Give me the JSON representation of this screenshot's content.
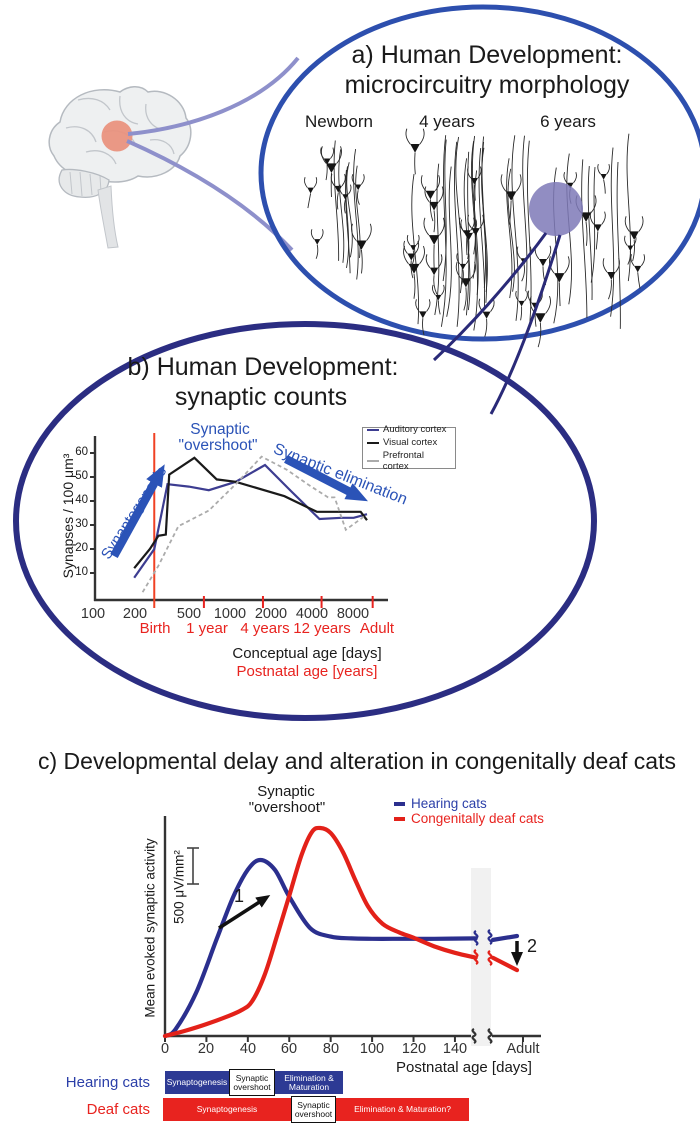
{
  "colors": {
    "ellipse_a_border": "#2d4fae",
    "ellipse_b_border": "#2b2d82",
    "zoom_connector_light": "#8e90cb",
    "zoom_connector_dark": "#2a2a78",
    "brain_highlight": "#e9927e",
    "morphology_highlight_circle": "#7e79b7",
    "annotation_blue": "#2b53b7",
    "accent_red": "#e8231f",
    "hearing_blue": "#2d3a94",
    "deaf_red": "#e8231f",
    "axis": "#333333"
  },
  "panel_a": {
    "title_line1": "a) Human Development:",
    "title_line2": "microcircuitry morphology",
    "stages": [
      "Newborn",
      "4 years",
      "6 years"
    ]
  },
  "panel_b": {
    "title_line1": "b) Human Development:",
    "title_line2": "synaptic counts",
    "ylabel": "Synapses / 100 μm³",
    "overshoot_line1": "Synaptic",
    "overshoot_line2": "\"overshoot\"",
    "synaptogenesis_label": "Synaptogenesis",
    "elimination_label": "Synaptic elimination",
    "legend": [
      "Auditory cortex",
      "Visual cortex",
      "Prefrontal cortex"
    ],
    "postnatal_labels": [
      "Birth",
      "1 year",
      "4 years",
      "12 years",
      "Adult"
    ],
    "xlabel_conceptual": "Conceptual age [days]",
    "xlabel_postnatal": "Postnatal age [years]"
  },
  "panel_c": {
    "title": "c) Developmental delay and alteration in congenitally deaf cats",
    "overshoot_line1": "Synaptic",
    "overshoot_line2": "\"overshoot\"",
    "legend": [
      {
        "label": "Hearing cats",
        "color": "#2b2f8e"
      },
      {
        "label": "Congenitally deaf cats",
        "color": "#e32119"
      }
    ],
    "ylabel": "Mean evoked synaptic activity",
    "scalebar_label": "500 μV/mm²",
    "arrow1_label": "1",
    "arrow2_label": "2",
    "adult_label": "Adult",
    "xlabel": "Postnatal age [days]",
    "rows": {
      "hearing": {
        "label": "Hearing cats",
        "segments": [
          "Synaptogenesis",
          "Synaptic overshoot",
          "Elimination & Maturation"
        ]
      },
      "deaf": {
        "label": "Deaf cats",
        "segments": [
          "Synaptogenesis",
          "Synaptic overshoot",
          "Elimination & Maturation?"
        ]
      }
    }
  },
  "chart_data": [
    {
      "type": "line",
      "title": "Human Development: synaptic counts",
      "xlabel": "Conceptual age [days]",
      "xlabel2": "Postnatal age [years]",
      "ylabel": "Synapses / 100 μm³",
      "x_scale": "log",
      "x_ticks": [
        100,
        200,
        500,
        1000,
        2000,
        4000,
        8000
      ],
      "y_ticks": [
        10,
        20,
        30,
        40,
        50,
        60
      ],
      "postnatal_tick_days": [
        280,
        645,
        1740,
        4660,
        11000
      ],
      "birth_day": 280,
      "legend_position": "upper right",
      "series": [
        {
          "name": "Auditory cortex",
          "color": "#3d3d91",
          "dash": "solid",
          "x": [
            200,
            280,
            350,
            500,
            700,
            1100,
            1800,
            2800,
            4500,
            6500,
            8000,
            10000
          ],
          "y": [
            8,
            20,
            47,
            46,
            44.5,
            48,
            55,
            44,
            32.5,
            33,
            33,
            34.5
          ]
        },
        {
          "name": "Visual cortex",
          "color": "#1a1a1a",
          "dash": "solid",
          "x": [
            200,
            260,
            300,
            340,
            360,
            550,
            800,
            1100,
            2500,
            4300,
            6500,
            9000,
            10000
          ],
          "y": [
            12,
            20,
            25.5,
            26,
            51,
            58,
            49,
            48,
            42,
            35.5,
            35.5,
            35.5,
            32
          ]
        },
        {
          "name": "Prefrontal cortex",
          "color": "#ababab",
          "dash": "dashed",
          "x": [
            230,
            300,
            420,
            700,
            1100,
            1700,
            2600,
            3800,
            5200,
            5800,
            7000,
            9500
          ],
          "y": [
            2,
            13,
            29.5,
            36,
            47,
            58.5,
            53,
            46.5,
            41.5,
            41.5,
            28,
            33.5
          ]
        }
      ]
    },
    {
      "type": "line",
      "title": "Developmental delay and alteration in congenitally deaf cats",
      "xlabel": "Postnatal age [days]",
      "ylabel": "Mean evoked synaptic activity (relative, scale bar = 500 μV/mm²)",
      "x_ticks": [
        0,
        20,
        40,
        60,
        80,
        100,
        120,
        140
      ],
      "x_axis_break_after": 150,
      "adult_label": "Adult",
      "series": [
        {
          "name": "Hearing cats",
          "color": "#2b2f8e",
          "x": [
            0,
            5,
            15,
            25,
            33,
            40,
            46,
            53,
            60,
            70,
            80,
            90,
            100,
            115,
            130,
            150
          ],
          "y": [
            0,
            0.03,
            0.2,
            0.45,
            0.645,
            0.77,
            0.815,
            0.77,
            0.645,
            0.5,
            0.46,
            0.452,
            0.45,
            0.45,
            0.45,
            0.452
          ]
        },
        {
          "name": "Congenitally deaf cats",
          "color": "#e32119",
          "x": [
            0,
            10,
            20,
            30,
            37,
            42,
            48,
            54,
            60,
            66,
            71,
            75,
            80,
            86,
            92,
            98,
            105,
            113,
            120,
            130,
            140,
            150
          ],
          "y": [
            0,
            0.025,
            0.055,
            0.09,
            0.12,
            0.16,
            0.28,
            0.46,
            0.65,
            0.84,
            0.945,
            0.963,
            0.94,
            0.85,
            0.72,
            0.6,
            0.52,
            0.48,
            0.455,
            0.415,
            0.385,
            0.363
          ]
        }
      ],
      "adult_segment": {
        "hearing": [
          0.445,
          0.463
        ],
        "deaf": [
          0.362,
          0.305
        ]
      }
    }
  ]
}
